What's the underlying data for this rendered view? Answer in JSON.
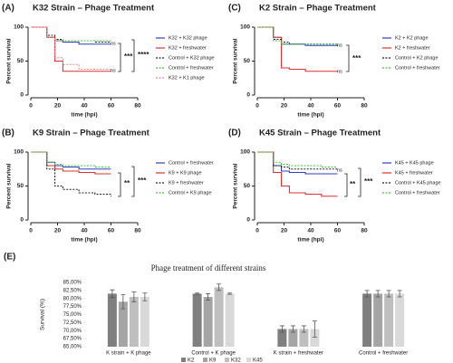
{
  "chart_data": [
    {
      "type": "survival",
      "label": "(A)",
      "title": "K32 Strain – Phage Treatment",
      "ylabel": "Percent survival",
      "xlabel": "time (hpi)",
      "x": [
        0,
        12,
        18,
        24,
        36,
        48,
        60
      ],
      "xlim": [
        0,
        80
      ],
      "xticks": [
        0,
        20,
        40,
        60,
        80
      ],
      "ylim": [
        0,
        100
      ],
      "yticks": [
        0,
        50,
        100
      ],
      "series": [
        {
          "name": "K32 + K32 phage",
          "color": "#2e3ec7",
          "linestyle": "solid",
          "values": [
            100,
            85,
            80,
            78,
            75,
            75,
            75
          ]
        },
        {
          "name": "K32 + freshwater",
          "color": "#e03030",
          "linestyle": "solid",
          "values": [
            100,
            85,
            50,
            35,
            35,
            35,
            35
          ]
        },
        {
          "name": "Control + K32 phage",
          "color": "#222222",
          "linestyle": "dotted",
          "values": [
            100,
            88,
            82,
            80,
            80,
            78,
            78
          ]
        },
        {
          "name": "Control + freshwater",
          "color": "#3cc43c",
          "linestyle": "dotted",
          "values": [
            100,
            85,
            80,
            80,
            80,
            80,
            80
          ]
        },
        {
          "name": "K32 + K1 phage",
          "color": "#f08090",
          "linestyle": "dotted",
          "values": [
            100,
            85,
            55,
            45,
            38,
            38,
            38
          ]
        }
      ],
      "annotations": [
        "ns",
        "ns",
        "***",
        "****"
      ]
    },
    {
      "type": "survival",
      "label": "(B)",
      "title": "K9 Strain – Phage Treatment",
      "ylabel": "Percent survival",
      "xlabel": "time (hpi)",
      "x": [
        0,
        12,
        18,
        24,
        36,
        48,
        60
      ],
      "xlim": [
        0,
        80
      ],
      "xticks": [
        0,
        20,
        40,
        60,
        80
      ],
      "ylim": [
        0,
        100
      ],
      "yticks": [
        0,
        50,
        100
      ],
      "series": [
        {
          "name": "Control + freshwater",
          "color": "#2e3ec7",
          "linestyle": "solid",
          "values": [
            100,
            85,
            80,
            78,
            75,
            75,
            75
          ]
        },
        {
          "name": "K9 + K9 phage",
          "color": "#e03030",
          "linestyle": "solid",
          "values": [
            100,
            80,
            75,
            72,
            70,
            68,
            68
          ]
        },
        {
          "name": "K9 + freshwater",
          "color": "#222222",
          "linestyle": "dotted",
          "values": [
            100,
            75,
            50,
            45,
            40,
            38,
            35
          ]
        },
        {
          "name": "Control + K9 phage",
          "color": "#3cc43c",
          "linestyle": "dotted",
          "values": [
            100,
            85,
            82,
            80,
            80,
            78,
            78
          ]
        }
      ],
      "annotations": [
        "**",
        "***"
      ]
    },
    {
      "type": "survival",
      "label": "(C)",
      "title": "K2 Strain – Phage Treatment",
      "ylabel": "Percent survival",
      "xlabel": "time (hpi)",
      "x": [
        0,
        12,
        18,
        24,
        36,
        48,
        60
      ],
      "xlim": [
        0,
        80
      ],
      "xticks": [
        0,
        20,
        40,
        60,
        80
      ],
      "ylim": [
        0,
        100
      ],
      "yticks": [
        0,
        50,
        100
      ],
      "series": [
        {
          "name": "K2 + K2 phage",
          "color": "#2e3ec7",
          "linestyle": "solid",
          "values": [
            100,
            85,
            75,
            75,
            73,
            73,
            72
          ]
        },
        {
          "name": "K2 + freshwater",
          "color": "#e03030",
          "linestyle": "solid",
          "values": [
            100,
            85,
            40,
            38,
            35,
            35,
            35
          ]
        },
        {
          "name": "Control + K2 phage",
          "color": "#222222",
          "linestyle": "dotted",
          "values": [
            100,
            82,
            78,
            75,
            75,
            75,
            75
          ]
        },
        {
          "name": "Control + freshwater",
          "color": "#3cc43c",
          "linestyle": "dotted",
          "values": [
            100,
            80,
            75,
            75,
            75,
            75,
            75
          ]
        }
      ],
      "annotations": [
        "ns",
        "ns",
        "***"
      ]
    },
    {
      "type": "survival",
      "label": "(D)",
      "title": "K45 Strain – Phage Treatment",
      "ylabel": "Percent survival",
      "xlabel": "time (hpi)",
      "x": [
        0,
        12,
        18,
        24,
        36,
        48,
        60
      ],
      "xlim": [
        0,
        80
      ],
      "xticks": [
        0,
        20,
        40,
        60,
        80
      ],
      "ylim": [
        0,
        100
      ],
      "yticks": [
        0,
        50,
        100
      ],
      "series": [
        {
          "name": "K45 + K45 phage",
          "color": "#2e3ec7",
          "linestyle": "solid",
          "values": [
            100,
            80,
            72,
            70,
            68,
            68,
            68
          ]
        },
        {
          "name": "K45 + freshwater",
          "color": "#e03030",
          "linestyle": "solid",
          "values": [
            100,
            70,
            50,
            40,
            38,
            35,
            35
          ]
        },
        {
          "name": "Control + K45 phage",
          "color": "#222222",
          "linestyle": "dotted",
          "values": [
            100,
            80,
            78,
            75,
            75,
            75,
            75
          ]
        },
        {
          "name": "Control + freshwater",
          "color": "#3cc43c",
          "linestyle": "dotted",
          "values": [
            100,
            85,
            82,
            80,
            80,
            78,
            78
          ]
        }
      ],
      "annotations": [
        "ns",
        "**",
        "***"
      ]
    },
    {
      "type": "bar",
      "label": "(E)",
      "title": "Phage treatment of different strains",
      "ylabel": "Survival (%)",
      "categories": [
        "K strain + K phage",
        "Control + K phage",
        "K strain + freshwater",
        "Control + freshwater"
      ],
      "ylim": [
        65,
        85
      ],
      "yticks": [
        {
          "value": 65,
          "label": "65,00%"
        },
        {
          "value": 67.5,
          "label": "67,50%"
        },
        {
          "value": 70,
          "label": "70,00%"
        },
        {
          "value": 72.5,
          "label": "72,50%"
        },
        {
          "value": 75,
          "label": "75,00%"
        },
        {
          "value": 77.5,
          "label": "77,50%"
        },
        {
          "value": 80,
          "label": "80,00%"
        },
        {
          "value": 82.5,
          "label": "82,50%"
        },
        {
          "value": 85,
          "label": "85,00%"
        }
      ],
      "series": [
        {
          "name": "K2",
          "color": "#7f7f7f",
          "values": [
            81.5,
            81.5,
            70.5,
            81.5
          ],
          "errors": [
            1.2,
            0.2,
            1,
            1
          ]
        },
        {
          "name": "K9",
          "color": "#a5a5a5",
          "values": [
            79,
            80.5,
            70.5,
            81.5
          ],
          "errors": [
            2.2,
            1,
            1,
            1
          ]
        },
        {
          "name": "K32",
          "color": "#bfbfbf",
          "values": [
            80.5,
            83.5,
            70.5,
            81.5
          ],
          "errors": [
            1.5,
            1,
            1,
            1
          ]
        },
        {
          "name": "K45",
          "color": "#d9d9d9",
          "values": [
            80.5,
            81.5,
            70.5,
            81.5
          ],
          "errors": [
            1.2,
            0.2,
            2.5,
            1
          ]
        }
      ]
    }
  ]
}
